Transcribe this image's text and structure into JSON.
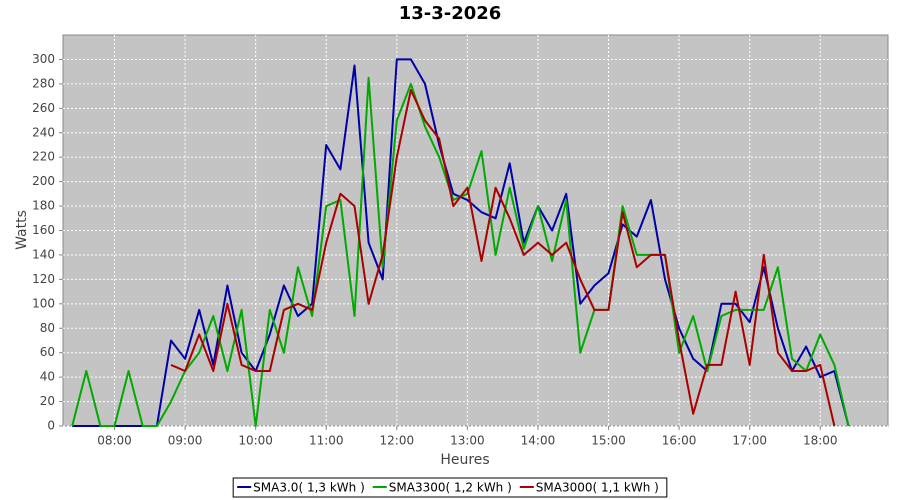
{
  "chart_data": {
    "type": "line",
    "title": "13-3-2026",
    "x_label": "Heures",
    "y_label": "Watts",
    "x": [
      7.4,
      7.6,
      7.8,
      8.0,
      8.2,
      8.4,
      8.6,
      8.8,
      9.0,
      9.2,
      9.4,
      9.6,
      9.8,
      10.0,
      10.2,
      10.4,
      10.6,
      10.8,
      11.0,
      11.2,
      11.4,
      11.6,
      11.8,
      12.0,
      12.2,
      12.4,
      12.6,
      12.8,
      13.0,
      13.2,
      13.4,
      13.6,
      13.8,
      14.0,
      14.2,
      14.4,
      14.6,
      14.8,
      15.0,
      15.2,
      15.4,
      15.6,
      15.8,
      16.0,
      16.2,
      16.4,
      16.6,
      16.8,
      17.0,
      17.2,
      17.4,
      17.6,
      17.8,
      18.0,
      18.2,
      18.4,
      18.6,
      18.8
    ],
    "series": [
      {
        "name": "SMA3.0( 1,3 kWh )",
        "color": "#0000aa",
        "values": [
          0,
          0,
          0,
          0,
          0,
          0,
          0,
          70,
          55,
          95,
          50,
          115,
          60,
          45,
          75,
          115,
          90,
          100,
          230,
          210,
          295,
          150,
          120,
          300,
          300,
          280,
          230,
          190,
          185,
          175,
          170,
          215,
          150,
          180,
          160,
          190,
          100,
          115,
          125,
          165,
          155,
          185,
          120,
          80,
          55,
          45,
          100,
          100,
          85,
          130,
          80,
          45,
          65,
          40,
          45,
          0,
          null,
          null
        ]
      },
      {
        "name": "SMA3300( 1,2 kWh )",
        "color": "#00aa00",
        "values": [
          0,
          45,
          0,
          0,
          45,
          0,
          0,
          20,
          45,
          60,
          90,
          45,
          95,
          0,
          95,
          60,
          130,
          90,
          180,
          185,
          90,
          285,
          130,
          250,
          280,
          245,
          220,
          185,
          190,
          225,
          140,
          195,
          145,
          180,
          135,
          185,
          60,
          95,
          95,
          180,
          140,
          140,
          140,
          60,
          90,
          45,
          90,
          95,
          95,
          95,
          130,
          55,
          45,
          75,
          50,
          0,
          null,
          null
        ]
      },
      {
        "name": "SMA3000( 1,1 kWh )",
        "color": "#aa0000",
        "values": [
          null,
          null,
          null,
          null,
          null,
          null,
          null,
          50,
          45,
          75,
          45,
          100,
          50,
          45,
          45,
          95,
          100,
          95,
          150,
          190,
          180,
          100,
          140,
          220,
          275,
          250,
          235,
          180,
          195,
          135,
          195,
          170,
          140,
          150,
          140,
          150,
          120,
          95,
          95,
          175,
          130,
          140,
          140,
          70,
          10,
          50,
          50,
          110,
          50,
          140,
          60,
          45,
          45,
          50,
          0,
          null,
          null,
          null
        ]
      }
    ],
    "xlim": [
      7.27,
      18.96
    ],
    "xticks": [
      {
        "value": 8,
        "label": "08:00"
      },
      {
        "value": 9,
        "label": "09:00"
      },
      {
        "value": 10,
        "label": "10:00"
      },
      {
        "value": 11,
        "label": "11:00"
      },
      {
        "value": 12,
        "label": "12:00"
      },
      {
        "value": 13,
        "label": "13:00"
      },
      {
        "value": 14,
        "label": "14:00"
      },
      {
        "value": 15,
        "label": "15:00"
      },
      {
        "value": 16,
        "label": "16:00"
      },
      {
        "value": 17,
        "label": "17:00"
      },
      {
        "value": 18,
        "label": "18:00"
      }
    ],
    "ylim": [
      0,
      320
    ],
    "yticks": [
      0,
      20,
      40,
      60,
      80,
      100,
      120,
      140,
      160,
      180,
      200,
      220,
      240,
      260,
      280,
      300
    ],
    "grid": true,
    "legend": "bottom",
    "background": "#c4c4c4"
  }
}
